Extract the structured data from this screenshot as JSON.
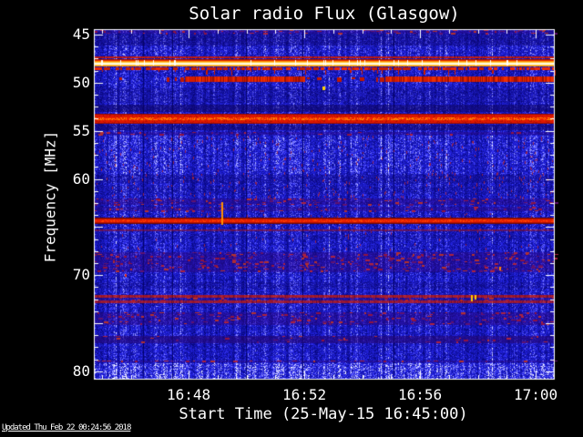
{
  "title": "Solar radio Flux (Glasgow)",
  "footer": {
    "updated_text": "Updated Thu Feb 22 00:24:56 2018"
  },
  "chart_data": {
    "type": "heatmap",
    "title": "Solar radio Flux (Glasgow)",
    "xlabel": "Start Time (25-May-15 16:45:00)",
    "ylabel": "Frequency [MHz]",
    "x_axis": {
      "unit": "minutes since 16:45:00",
      "min": -0.28,
      "max": 15.66,
      "minor_step": 1,
      "major_ticks": [
        {
          "value": 3,
          "label": "16:48"
        },
        {
          "value": 7,
          "label": "16:52"
        },
        {
          "value": 11,
          "label": "16:56"
        },
        {
          "value": 15,
          "label": "17:00"
        }
      ]
    },
    "y_axis": {
      "unit": "MHz",
      "min": 44.43,
      "max": 80.86,
      "minor_step": 1.25,
      "direction": "increasing-downward",
      "major_ticks": [
        {
          "value": 45,
          "label": "45"
        },
        {
          "value": 50,
          "label": "50"
        },
        {
          "value": 55,
          "label": "55"
        },
        {
          "value": 60,
          "label": "60"
        },
        {
          "value": 65,
          "label": ""
        },
        {
          "value": 70,
          "label": "70"
        },
        {
          "value": 75,
          "label": ""
        },
        {
          "value": 80,
          "label": "80"
        }
      ]
    },
    "palette": {
      "background": "#000000",
      "axis": "#ffffff",
      "text": "#ffffff",
      "base_blue_dark": "#0a0a9a",
      "base_blue_mid": "#1a1ad2",
      "base_blue_bright": "#3838ff",
      "indigo_band": "#0e0460",
      "speckle_base": "#2c0a7e",
      "speckle_reds": [
        "#8c1444",
        "#aa2240",
        "#5f1270",
        "#b03030"
      ],
      "red_tick": "#a8243c",
      "band_red": "#c41400",
      "band_red_bright": "#ee2600",
      "band_red_dark": "#8e0c00",
      "orange": "#ff6a00",
      "gold": "#ffcf4a",
      "core_white": "#fff9d8",
      "event_yellow": "#ffd400"
    },
    "zones": [
      {
        "type": "speckle",
        "f1": 44.43,
        "f2": 44.95,
        "density": 0.5
      },
      {
        "type": "dark",
        "f1": 44.95,
        "f2": 46.1,
        "alpha": 0.32
      },
      {
        "type": "bright",
        "f1": 46.1,
        "f2": 47.2,
        "gain": 1.08
      },
      {
        "type": "dark",
        "f1": 50.6,
        "f2": 52.05,
        "alpha": 0.2
      },
      {
        "type": "dark",
        "f1": 52.3,
        "f2": 53.05,
        "alpha": 0.55
      },
      {
        "type": "dark",
        "f1": 54.35,
        "f2": 54.9,
        "alpha": 0.5
      },
      {
        "type": "speckle",
        "f1": 55.1,
        "f2": 55.45,
        "density": 0.2
      },
      {
        "type": "bright",
        "f1": 55.5,
        "f2": 59.5,
        "gain": 1.1
      },
      {
        "type": "red_ticks",
        "f1": 55.5,
        "f2": 62.0,
        "density": 0.02
      },
      {
        "type": "dark",
        "f1": 59.6,
        "f2": 60.4,
        "alpha": 0.22
      },
      {
        "type": "dark",
        "f1": 60.7,
        "f2": 61.6,
        "alpha": 0.14
      },
      {
        "type": "speckle",
        "f1": 62.0,
        "f2": 62.65,
        "density": 0.45
      },
      {
        "type": "speckle",
        "f1": 62.85,
        "f2": 63.4,
        "density": 0.4
      },
      {
        "type": "red_ticks",
        "f1": 63.5,
        "f2": 67.5,
        "density": 0.01
      },
      {
        "type": "dark",
        "f1": 65.8,
        "f2": 66.3,
        "alpha": 0.15
      },
      {
        "type": "speckle",
        "f1": 67.6,
        "f2": 69.7,
        "density": 0.4
      },
      {
        "type": "dark",
        "f1": 70.7,
        "f2": 71.4,
        "alpha": 0.18
      },
      {
        "type": "speckle",
        "f1": 72.35,
        "f2": 72.6,
        "density": 0.35
      },
      {
        "type": "speckle",
        "f1": 73.85,
        "f2": 75.2,
        "density": 0.4
      },
      {
        "type": "dark",
        "f1": 76.3,
        "f2": 77.1,
        "alpha": 0.3
      },
      {
        "type": "speckle",
        "f1": 76.3,
        "f2": 77.1,
        "density": 0.15
      },
      {
        "type": "speckle",
        "f1": 78.85,
        "f2": 79.1,
        "density": 0.5
      },
      {
        "type": "bright",
        "f1": 79.2,
        "f2": 80.86,
        "gain": 1.3
      }
    ],
    "bands": [
      {
        "name": "rfi-47.3-red-line",
        "type": "red_line",
        "f1": 47.25,
        "f2": 47.5,
        "alpha": 0.9
      },
      {
        "name": "rfi-48-bright-band",
        "type": "bright_band",
        "f1": 47.55,
        "f2": 48.35
      },
      {
        "name": "rfi-48.7-dash-drips",
        "type": "dash_drips",
        "f1": 48.4,
        "f2": 49.1
      },
      {
        "name": "rfi-49.6-blob-dashes",
        "type": "blob_dashes",
        "f1": 49.25,
        "f2": 49.95,
        "solid_t": [
          [
            2.8,
            7.0
          ],
          [
            9.7,
            15.66
          ]
        ]
      },
      {
        "name": "rfi-53.8-red-thick",
        "type": "red_thick",
        "f1": 53.2,
        "f2": 54.3
      },
      {
        "name": "rfi-64.3-red-line",
        "type": "red_line2",
        "f1": 64.0,
        "f2": 64.7
      },
      {
        "name": "rfi-65.3-red-faint",
        "type": "red_faint",
        "f1": 65.2,
        "f2": 65.45
      },
      {
        "name": "rfi-72.2-red-line",
        "type": "red_line",
        "f1": 72.1,
        "f2": 72.35,
        "alpha": 0.75
      },
      {
        "name": "rfi-72.8-red-line",
        "type": "red_line",
        "f1": 72.6,
        "f2": 72.9,
        "alpha": 0.7
      }
    ],
    "events": [
      {
        "name": "orange-streak",
        "t": 4.17,
        "f1": 62.4,
        "f2": 64.8,
        "w": 2,
        "color": "#ff9000"
      },
      {
        "name": "yellow-dot",
        "t": 7.66,
        "f1": 50.35,
        "f2": 50.7,
        "w": 3,
        "color": "#ffd400"
      },
      {
        "name": "yellow-dash-1",
        "t": 12.8,
        "f1": 72.1,
        "f2": 72.75,
        "w": 2,
        "color": "#ffcc00"
      },
      {
        "name": "yellow-dash-2",
        "t": 12.93,
        "f1": 72.1,
        "f2": 72.6,
        "w": 2,
        "color": "#ffcc00"
      },
      {
        "name": "orange-dot",
        "t": 13.77,
        "f1": 69.1,
        "f2": 69.45,
        "w": 2,
        "color": "#ff8800"
      },
      {
        "name": "red-dot",
        "t": 0.83,
        "f1": 69.85,
        "f2": 70.1,
        "w": 2,
        "color": "#e03020"
      }
    ]
  }
}
